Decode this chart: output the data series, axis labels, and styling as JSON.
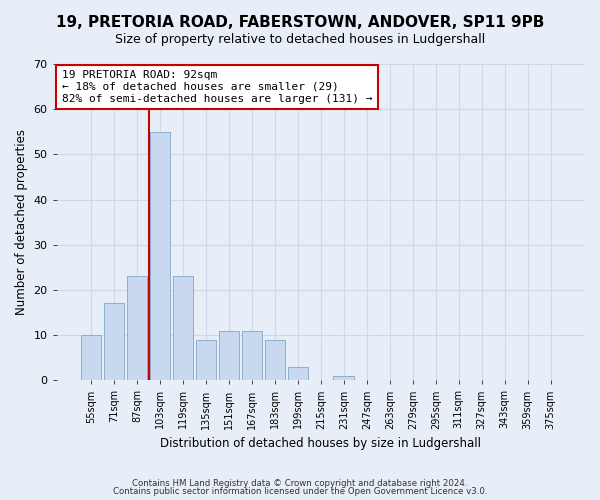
{
  "title": "19, PRETORIA ROAD, FABERSTOWN, ANDOVER, SP11 9PB",
  "subtitle": "Size of property relative to detached houses in Ludgershall",
  "xlabel": "Distribution of detached houses by size in Ludgershall",
  "ylabel": "Number of detached properties",
  "bar_labels": [
    "55sqm",
    "71sqm",
    "87sqm",
    "103sqm",
    "119sqm",
    "135sqm",
    "151sqm",
    "167sqm",
    "183sqm",
    "199sqm",
    "215sqm",
    "231sqm",
    "247sqm",
    "263sqm",
    "279sqm",
    "295sqm",
    "311sqm",
    "327sqm",
    "343sqm",
    "359sqm",
    "375sqm"
  ],
  "bar_values": [
    10,
    17,
    23,
    55,
    23,
    9,
    11,
    11,
    9,
    3,
    0,
    1,
    0,
    0,
    0,
    0,
    0,
    0,
    0,
    0,
    0
  ],
  "bar_color": "#c8d8ee",
  "bar_edge_color": "#8ab0d0",
  "vline_position": 2.5,
  "annotation_text": "19 PRETORIA ROAD: 92sqm\n← 18% of detached houses are smaller (29)\n82% of semi-detached houses are larger (131) →",
  "annotation_box_color": "#ffffff",
  "annotation_box_edge_color": "#cc0000",
  "vline_color": "#cc0000",
  "background_color": "#e8eef8",
  "plot_bg_color": "#e8eef8",
  "ylim": [
    0,
    70
  ],
  "yticks": [
    0,
    10,
    20,
    30,
    40,
    50,
    60,
    70
  ],
  "grid_color": "#d0d8e8",
  "title_fontsize": 11,
  "subtitle_fontsize": 9,
  "footnote1": "Contains HM Land Registry data © Crown copyright and database right 2024.",
  "footnote2": "Contains public sector information licensed under the Open Government Licence v3.0."
}
